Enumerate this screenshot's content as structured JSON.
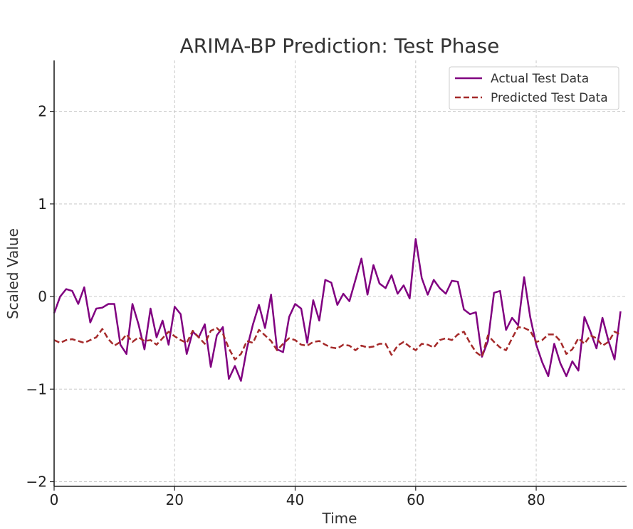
{
  "chart_data": {
    "type": "line",
    "title": "ARIMA-BP Prediction: Test Phase",
    "xlabel": "Time",
    "ylabel": "Scaled Value",
    "xlim": [
      0,
      95
    ],
    "ylim": [
      -2.05,
      2.55
    ],
    "xticks": [
      0,
      20,
      40,
      60,
      80
    ],
    "yticks": [
      -2,
      -1,
      0,
      1,
      2
    ],
    "xtick_labels": [
      "0",
      "20",
      "40",
      "60",
      "80"
    ],
    "ytick_labels": [
      "−2",
      "−1",
      "0",
      "1",
      "2"
    ],
    "grid": true,
    "legend_position": "top-right",
    "x": [
      0,
      1,
      2,
      3,
      4,
      5,
      6,
      7,
      8,
      9,
      10,
      11,
      12,
      13,
      14,
      15,
      16,
      17,
      18,
      19,
      20,
      21,
      22,
      23,
      24,
      25,
      26,
      27,
      28,
      29,
      30,
      31,
      32,
      33,
      34,
      35,
      36,
      37,
      38,
      39,
      40,
      41,
      42,
      43,
      44,
      45,
      46,
      47,
      48,
      49,
      50,
      51,
      52,
      53,
      54,
      55,
      56,
      57,
      58,
      59,
      60,
      61,
      62,
      63,
      64,
      65,
      66,
      67,
      68,
      69,
      70,
      71,
      72,
      73,
      74,
      75,
      76,
      77,
      78,
      79,
      80,
      81,
      82,
      83,
      84,
      85,
      86,
      87,
      88,
      89,
      90,
      91,
      92,
      93,
      94
    ],
    "series": [
      {
        "name": "Actual Test Data",
        "color": "#800080",
        "style": "solid",
        "values": [
          -0.18,
          0.0,
          0.08,
          0.06,
          -0.08,
          0.1,
          -0.28,
          -0.13,
          -0.12,
          -0.08,
          -0.08,
          -0.52,
          -0.62,
          -0.08,
          -0.3,
          -0.57,
          -0.13,
          -0.44,
          -0.26,
          -0.52,
          -0.11,
          -0.19,
          -0.62,
          -0.38,
          -0.44,
          -0.3,
          -0.76,
          -0.42,
          -0.33,
          -0.89,
          -0.75,
          -0.91,
          -0.56,
          -0.3,
          -0.09,
          -0.34,
          0.02,
          -0.57,
          -0.6,
          -0.22,
          -0.08,
          -0.13,
          -0.5,
          -0.04,
          -0.26,
          0.18,
          0.15,
          -0.09,
          0.03,
          -0.05,
          0.18,
          0.41,
          0.02,
          0.34,
          0.14,
          0.09,
          0.23,
          0.03,
          0.12,
          -0.02,
          0.62,
          0.2,
          0.02,
          0.18,
          0.09,
          0.03,
          0.17,
          0.16,
          -0.14,
          -0.19,
          -0.17,
          -0.65,
          -0.48,
          0.04,
          0.06,
          -0.36,
          -0.23,
          -0.31,
          0.21,
          -0.22,
          -0.52,
          -0.71,
          -0.86,
          -0.51,
          -0.72,
          -0.86,
          -0.7,
          -0.8,
          -0.22,
          -0.38,
          -0.56,
          -0.23,
          -0.48,
          -0.68,
          -0.16
        ]
      },
      {
        "name": "Predicted Test Data",
        "color": "#a52a2a",
        "style": "dashed",
        "values": [
          -0.47,
          -0.5,
          -0.47,
          -0.46,
          -0.48,
          -0.5,
          -0.47,
          -0.44,
          -0.35,
          -0.46,
          -0.53,
          -0.49,
          -0.41,
          -0.49,
          -0.44,
          -0.48,
          -0.47,
          -0.52,
          -0.45,
          -0.38,
          -0.43,
          -0.47,
          -0.5,
          -0.37,
          -0.44,
          -0.51,
          -0.37,
          -0.34,
          -0.4,
          -0.56,
          -0.68,
          -0.62,
          -0.48,
          -0.5,
          -0.36,
          -0.42,
          -0.48,
          -0.58,
          -0.51,
          -0.45,
          -0.47,
          -0.52,
          -0.53,
          -0.49,
          -0.48,
          -0.52,
          -0.55,
          -0.56,
          -0.52,
          -0.53,
          -0.58,
          -0.53,
          -0.55,
          -0.54,
          -0.51,
          -0.51,
          -0.63,
          -0.53,
          -0.49,
          -0.54,
          -0.58,
          -0.51,
          -0.52,
          -0.55,
          -0.47,
          -0.45,
          -0.47,
          -0.41,
          -0.38,
          -0.5,
          -0.6,
          -0.65,
          -0.42,
          -0.49,
          -0.55,
          -0.58,
          -0.45,
          -0.33,
          -0.34,
          -0.37,
          -0.49,
          -0.47,
          -0.41,
          -0.41,
          -0.48,
          -0.62,
          -0.57,
          -0.45,
          -0.51,
          -0.42,
          -0.45,
          -0.53,
          -0.49,
          -0.38,
          -0.41
        ]
      }
    ]
  }
}
